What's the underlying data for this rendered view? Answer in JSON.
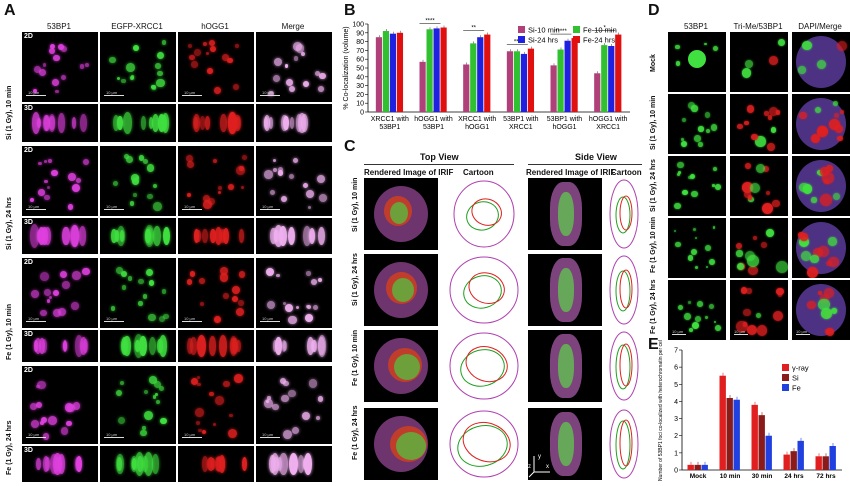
{
  "panels": {
    "A": "A",
    "B": "B",
    "C": "C",
    "D": "D",
    "E": "E"
  },
  "panel_a": {
    "columns": [
      "53BP1",
      "EGFP-XRCC1",
      "hOGG1",
      "Merge"
    ],
    "row_labels": [
      "Si (1 Gy), 10 min",
      "Si (1 Gy), 24 hrs",
      "Fe (1 Gy), 10 min",
      "Fe (1 Gy), 24 hrs"
    ],
    "tags": {
      "d2": "2D",
      "d3": "3D"
    },
    "scalebar": "10 µm",
    "colors": {
      "magenta": "#e040e0",
      "green": "#40e040",
      "red": "#e02020",
      "merge": "#f0b0f0"
    }
  },
  "panel_c": {
    "top_view": "Top View",
    "side_view": "Side View",
    "rendered": "Rendered Image of IRIF",
    "cartoon": "Cartoon",
    "row_labels": [
      "Si (1 Gy), 10 min",
      "Si (1 Gy), 24 hrs",
      "Fe (1 Gy), 10 min",
      "Fe (1 Gy), 24 hrs"
    ],
    "axis_y": "y",
    "axis_x": "x",
    "axis_z": "z"
  },
  "panel_d": {
    "columns": [
      "53BP1",
      "Tri-Me/53BP1",
      "DAPI/Merge"
    ],
    "row_labels": [
      "Mock",
      "Si (1 Gy), 10 min",
      "Si (1 Gy), 24 hrs",
      "Fe (1 Gy), 10 min",
      "Fe (1 Gy), 24 hrs"
    ],
    "scalebar": "10 µm"
  },
  "chart_data": [
    {
      "type": "bar",
      "panel": "B",
      "ylabel": "% Co-localization (volume)",
      "ylim": [
        0,
        100
      ],
      "yticks": [
        0,
        10,
        20,
        30,
        40,
        50,
        60,
        70,
        80,
        90,
        100
      ],
      "categories": [
        "XRCC1 with 53BP1",
        "hOGG1 with 53BP1",
        "XRCC1 with hOGG1",
        "53BP1 with XRCC1",
        "53BP1 with hOGG1",
        "hOGG1 with XRCC1"
      ],
      "series": [
        {
          "name": "Si-10 min",
          "color": "#b0407a",
          "values": [
            85,
            57,
            54,
            69,
            53,
            44
          ]
        },
        {
          "name": "Fe-10 min",
          "color": "#30c030",
          "values": [
            92,
            94,
            78,
            69,
            71,
            76
          ]
        },
        {
          "name": "Si-24 hrs",
          "color": "#2020e0",
          "values": [
            89,
            95,
            85,
            66,
            81,
            75
          ]
        },
        {
          "name": "Fe-24 hrs",
          "color": "#e01010",
          "values": [
            90,
            96,
            88,
            72,
            84,
            88
          ]
        }
      ],
      "significance": [
        "****",
        "**",
        "***",
        "*****",
        "*"
      ]
    },
    {
      "type": "bar",
      "panel": "E",
      "ylabel": "Number of 53BP1 foci co-localized with heterochromatin per cell",
      "ylim": [
        0,
        7
      ],
      "yticks": [
        0,
        1,
        2,
        3,
        4,
        5,
        6,
        7
      ],
      "categories": [
        "Mock",
        "10 min",
        "30 min",
        "24 hrs",
        "72 hrs"
      ],
      "series": [
        {
          "name": "γ-ray",
          "color": "#e02020",
          "values": [
            0.3,
            5.5,
            3.8,
            0.9,
            0.8
          ]
        },
        {
          "name": "Si",
          "color": "#8b1a1a",
          "values": [
            0.3,
            4.2,
            3.2,
            1.1,
            0.8
          ]
        },
        {
          "name": "Fe",
          "color": "#2040e0",
          "values": [
            0.3,
            4.1,
            2.0,
            1.7,
            1.4
          ]
        }
      ]
    }
  ]
}
